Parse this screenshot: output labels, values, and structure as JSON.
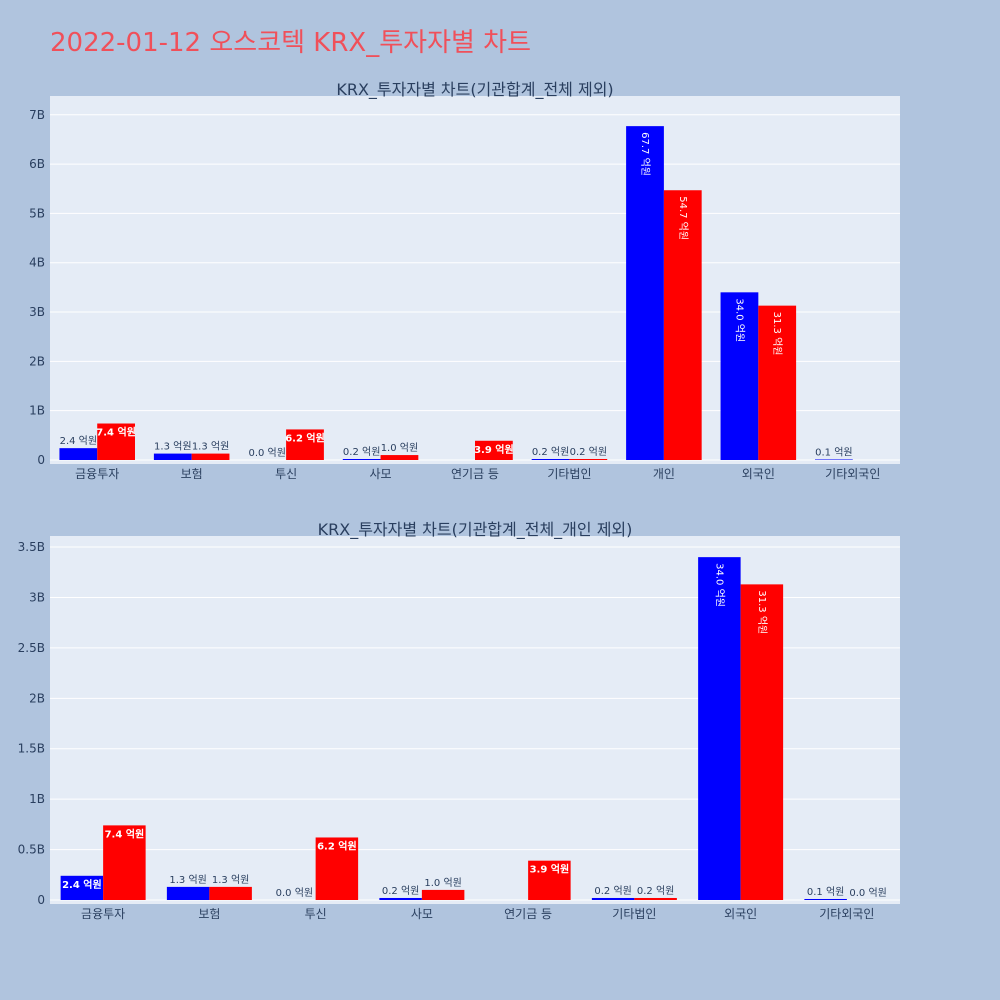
{
  "page_title": "2022-01-12 오스코텍 KRX_투자자별 차트",
  "colors": {
    "buy": "#0000ff",
    "sell": "#ff0000",
    "plot_bg": "#e5ecf6",
    "page_bg": "#b0c4de",
    "title": "#f0505a"
  },
  "chart_data": [
    {
      "type": "bar",
      "title": "KRX_투자자별 차트(기관합계_전체 제외)",
      "categories": [
        "금융투자",
        "보험",
        "투신",
        "사모",
        "연기금 등",
        "기타법인",
        "개인",
        "외국인",
        "기타외국인"
      ],
      "series": [
        {
          "color": "#0000ff",
          "values": [
            240000000,
            130000000,
            0,
            20000000,
            0,
            20000000,
            6770000000,
            3400000000,
            10000000
          ],
          "labels": [
            "2.4 억원",
            "1.3 억원",
            "0.0 억원",
            "0.2 억원",
            "",
            "0.2 억원",
            "67.7 억원",
            "34.0 억원",
            "0.1 억원"
          ]
        },
        {
          "color": "#ff0000",
          "values": [
            740000000,
            130000000,
            620000000,
            100000000,
            390000000,
            20000000,
            5470000000,
            3130000000,
            0
          ],
          "labels": [
            "7.4 억원",
            "1.3 억원",
            "6.2 억원",
            "1.0 억원",
            "3.9 억원",
            "0.2 억원",
            "54.7 억원",
            "31.3 억원",
            ""
          ]
        }
      ],
      "yticks": [
        0,
        1000000000,
        2000000000,
        3000000000,
        4000000000,
        5000000000,
        6000000000,
        7000000000
      ],
      "ytick_labels": [
        "0",
        "1B",
        "2B",
        "3B",
        "4B",
        "5B",
        "6B",
        "7B"
      ],
      "ylim": [
        0,
        7300000000
      ],
      "grid": true
    },
    {
      "type": "bar",
      "title": "KRX_투자자별 차트(기관합계_전체_개인 제외)",
      "categories": [
        "금융투자",
        "보험",
        "투신",
        "사모",
        "연기금 등",
        "기타법인",
        "외국인",
        "기타외국인"
      ],
      "series": [
        {
          "color": "#0000ff",
          "values": [
            240000000,
            130000000,
            0,
            20000000,
            0,
            20000000,
            3400000000,
            10000000
          ],
          "labels": [
            "2.4 억원",
            "1.3 억원",
            "0.0 억원",
            "0.2 억원",
            "",
            "0.2 억원",
            "34.0 억원",
            "0.1 억원"
          ]
        },
        {
          "color": "#ff0000",
          "values": [
            740000000,
            130000000,
            620000000,
            100000000,
            390000000,
            20000000,
            3130000000,
            0
          ],
          "labels": [
            "7.4 억원",
            "1.3 억원",
            "6.2 억원",
            "1.0 억원",
            "3.9 억원",
            "0.2 억원",
            "31.3 억원",
            "0.0 억원"
          ]
        }
      ],
      "yticks": [
        0,
        500000000,
        1000000000,
        1500000000,
        2000000000,
        2500000000,
        3000000000,
        3500000000
      ],
      "ytick_labels": [
        "0",
        "0.5B",
        "1B",
        "1.5B",
        "2B",
        "2.5B",
        "3B",
        "3.5B"
      ],
      "ylim": [
        0,
        3570000000
      ],
      "grid": true
    }
  ]
}
